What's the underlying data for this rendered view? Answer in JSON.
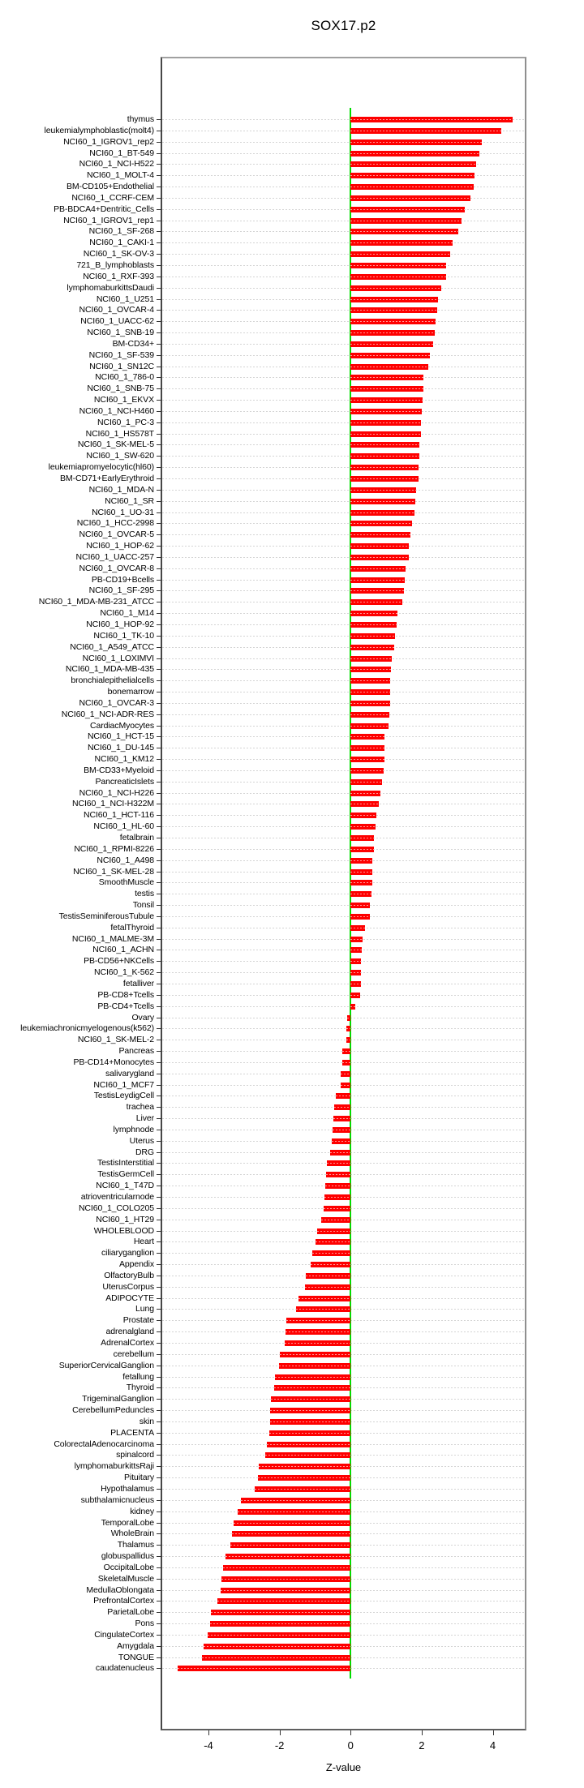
{
  "title": "SOX17.p2",
  "chart_data": {
    "type": "bar",
    "orientation": "horizontal",
    "title": "SOX17.p2",
    "xlabel": "Z-value",
    "xlim": [
      -5.3,
      4.9
    ],
    "xticks": [
      -4,
      -2,
      0,
      2,
      4
    ],
    "grid": "dotted-horizontal-per-row",
    "legend": "none",
    "bar_color": "#fe0000",
    "zero_line_color": "#00dd00",
    "gridline_color": "#d4d4d4",
    "categories": [
      "thymus",
      "leukemialymphoblastic(molt4)",
      "NCI60_1_IGROV1_rep2",
      "NCI60_1_BT-549",
      "NCI60_1_NCI-H522",
      "NCI60_1_MOLT-4",
      "BM-CD105+Endothelial",
      "NCI60_1_CCRF-CEM",
      "PB-BDCA4+Dentritic_Cells",
      "NCI60_1_IGROV1_rep1",
      "NCI60_1_SF-268",
      "NCI60_1_CAKI-1",
      "NCI60_1_SK-OV-3",
      "721_B_lymphoblasts",
      "NCI60_1_RXF-393",
      "lymphomaburkittsDaudi",
      "NCI60_1_U251",
      "NCI60_1_OVCAR-4",
      "NCI60_1_UACC-62",
      "NCI60_1_SNB-19",
      "BM-CD34+",
      "NCI60_1_SF-539",
      "NCI60_1_SN12C",
      "NCI60_1_786-0",
      "NCI60_1_SNB-75",
      "NCI60_1_EKVX",
      "NCI60_1_NCI-H460",
      "NCI60_1_PC-3",
      "NCI60_1_HS578T",
      "NCI60_1_SK-MEL-5",
      "NCI60_1_SW-620",
      "leukemiapromyelocytic(hl60)",
      "BM-CD71+EarlyErythroid",
      "NCI60_1_MDA-N",
      "NCI60_1_SR",
      "NCI60_1_UO-31",
      "NCI60_1_HCC-2998",
      "NCI60_1_OVCAR-5",
      "NCI60_1_HOP-62",
      "NCI60_1_UACC-257",
      "NCI60_1_OVCAR-8",
      "PB-CD19+Bcells",
      "NCI60_1_SF-295",
      "NCI60_1_MDA-MB-231_ATCC",
      "NCI60_1_M14",
      "NCI60_1_HOP-92",
      "NCI60_1_TK-10",
      "NCI60_1_A549_ATCC",
      "NCI60_1_LOXIMVI",
      "NCI60_1_MDA-MB-435",
      "bronchialepithelialcells",
      "bonemarrow",
      "NCI60_1_OVCAR-3",
      "NCI60_1_NCI-ADR-RES",
      "CardiacMyocytes",
      "NCI60_1_HCT-15",
      "NCI60_1_DU-145",
      "NCI60_1_KM12",
      "BM-CD33+Myeloid",
      "PancreaticIslets",
      "NCI60_1_NCI-H226",
      "NCI60_1_NCI-H322M",
      "NCI60_1_HCT-116",
      "NCI60_1_HL-60",
      "fetalbrain",
      "NCI60_1_RPMI-8226",
      "NCI60_1_A498",
      "NCI60_1_SK-MEL-28",
      "SmoothMuscle",
      "testis",
      "Tonsil",
      "TestisSeminiferousTubule",
      "fetalThyroid",
      "NCI60_1_MALME-3M",
      "NCI60_1_ACHN",
      "PB-CD56+NKCells",
      "NCI60_1_K-562",
      "fetalliver",
      "PB-CD8+Tcells",
      "PB-CD4+Tcells",
      "Ovary",
      "leukemiachronicmyelogenous(k562)",
      "NCI60_1_SK-MEL-2",
      "Pancreas",
      "PB-CD14+Monocytes",
      "salivarygland",
      "NCI60_1_MCF7",
      "TestisLeydigCell",
      "trachea",
      "Liver",
      "lymphnode",
      "Uterus",
      "DRG",
      "TestisInterstitial",
      "TestisGermCell",
      "NCI60_1_T47D",
      "atrioventricularnode",
      "NCI60_1_COLO205",
      "NCI60_1_HT29",
      "WHOLEBLOOD",
      "Heart",
      "ciliaryganglion",
      "Appendix",
      "OlfactoryBulb",
      "UterusCorpus",
      "ADIPOCYTE",
      "Lung",
      "Prostate",
      "adrenalgland",
      "AdrenalCortex",
      "cerebellum",
      "SuperiorCervicalGanglion",
      "fetallung",
      "Thyroid",
      "TrigeminalGanglion",
      "CerebellumPeduncles",
      "skin",
      "PLACENTA",
      "ColorectalAdenocarcinoma",
      "spinalcord",
      "lymphomaburkittsRaji",
      "Pituitary",
      "Hypothalamus",
      "subthalamicnucleus",
      "kidney",
      "TemporalLobe",
      "WholeBrain",
      "Thalamus",
      "globuspallidus",
      "OccipitalLobe",
      "SkeletalMuscle",
      "MedullaOblongata",
      "PrefrontalCortex",
      "ParietalLobe",
      "Pons",
      "CingulateCortex",
      "Amygdala",
      "TONGUE",
      "caudatenucleus"
    ],
    "values": [
      4.55,
      4.24,
      3.69,
      3.63,
      3.53,
      3.49,
      3.47,
      3.37,
      3.22,
      3.11,
      3.04,
      2.86,
      2.79,
      2.69,
      2.68,
      2.54,
      2.46,
      2.43,
      2.39,
      2.36,
      2.33,
      2.22,
      2.19,
      2.05,
      2.04,
      2.03,
      2.01,
      1.98,
      1.97,
      1.94,
      1.94,
      1.92,
      1.91,
      1.85,
      1.81,
      1.8,
      1.73,
      1.69,
      1.64,
      1.64,
      1.55,
      1.53,
      1.5,
      1.45,
      1.31,
      1.29,
      1.25,
      1.22,
      1.16,
      1.14,
      1.12,
      1.11,
      1.11,
      1.1,
      1.07,
      0.96,
      0.95,
      0.95,
      0.94,
      0.88,
      0.83,
      0.8,
      0.72,
      0.71,
      0.65,
      0.65,
      0.6,
      0.6,
      0.6,
      0.58,
      0.55,
      0.54,
      0.4,
      0.34,
      0.32,
      0.3,
      0.3,
      0.29,
      0.27,
      0.13,
      -0.09,
      -0.12,
      -0.13,
      -0.24,
      -0.24,
      -0.27,
      -0.29,
      -0.42,
      -0.47,
      -0.49,
      -0.51,
      -0.54,
      -0.58,
      -0.66,
      -0.68,
      -0.72,
      -0.73,
      -0.77,
      -0.82,
      -0.94,
      -0.98,
      -1.08,
      -1.12,
      -1.26,
      -1.28,
      -1.47,
      -1.54,
      -1.8,
      -1.83,
      -1.86,
      -1.99,
      -2.01,
      -2.13,
      -2.15,
      -2.25,
      -2.26,
      -2.26,
      -2.28,
      -2.36,
      -2.4,
      -2.58,
      -2.61,
      -2.69,
      -3.09,
      -3.17,
      -3.3,
      -3.34,
      -3.39,
      -3.51,
      -3.59,
      -3.63,
      -3.66,
      -3.74,
      -3.93,
      -3.95,
      -4.03,
      -4.14,
      -4.19,
      -4.87
    ]
  }
}
